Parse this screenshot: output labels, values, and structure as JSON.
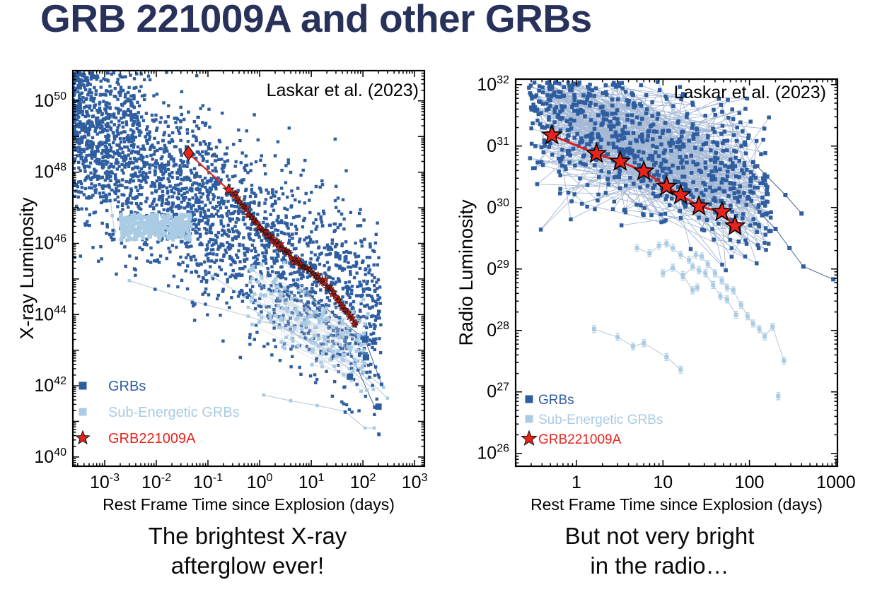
{
  "title": "GRB 221009A and other GRBs",
  "captions": {
    "xray": "The brightest X-ray\nafterglow ever!",
    "radio": "But not very bright\nin the radio…"
  },
  "colors": {
    "title_navy": "#27315a",
    "grb_blue": "#2e5da0",
    "sub_energetic_blue": "#a9cbe3",
    "grb221009a_red": "#e8231b"
  },
  "chart_data": [
    {
      "id": "xray",
      "type": "scatter",
      "title": "",
      "annotation": "Laskar et al. (2023)",
      "xlabel": "Rest Frame Time since Explosion (days)",
      "ylabel": "X-ray Luminosity",
      "xscale": "log",
      "yscale": "log",
      "xlim_log": [
        -3.616,
        3.19
      ],
      "ylim_log": [
        39.74,
        50.85
      ],
      "xticks": [
        {
          "v": -3,
          "base": "10",
          "exp": "-3"
        },
        {
          "v": -2,
          "base": "10",
          "exp": "-2"
        },
        {
          "v": -1,
          "base": "10",
          "exp": "-1"
        },
        {
          "v": 0,
          "base": "10",
          "exp": "0"
        },
        {
          "v": 1,
          "base": "10",
          "exp": "1"
        },
        {
          "v": 2,
          "base": "10",
          "exp": "2"
        },
        {
          "v": 3,
          "base": "10",
          "exp": "3"
        }
      ],
      "yticks": [
        {
          "v": 40,
          "base": "10",
          "exp": "40"
        },
        {
          "v": 42,
          "base": "10",
          "exp": "42"
        },
        {
          "v": 44,
          "base": "10",
          "exp": "44"
        },
        {
          "v": 46,
          "base": "10",
          "exp": "46"
        },
        {
          "v": 48,
          "base": "10",
          "exp": "48"
        },
        {
          "v": 50,
          "base": "10",
          "exp": "50"
        }
      ],
      "legend": [
        {
          "marker": "square",
          "color": "#2e5da0",
          "label": "GRBs"
        },
        {
          "marker": "square",
          "color": "#a9cbe3",
          "label": "Sub-Energetic GRBs"
        },
        {
          "marker": "star",
          "color": "#e8231b",
          "label": "GRB221009A"
        }
      ],
      "series": [
        {
          "name": "sub-energetic-lightcurves",
          "kind": "track",
          "color": "#a9cbe3",
          "marker": "square",
          "size": 4.6,
          "line": {
            "color": "#becbdb",
            "width": 1.1
          },
          "sets": [
            [
              [
                0.00115,
                9.5e+47
              ],
              [
                0.00122,
                4e+47
              ],
              [
                0.0013,
                1.6e+47
              ],
              [
                0.0014,
                6e+46
              ],
              [
                0.00155,
                2.2e+46
              ]
            ],
            [
              [
                0.003,
                9e+44
              ],
              [
                0.05,
                2.4e+44
              ],
              [
                0.6,
                9e+43
              ],
              [
                2.5,
                4.5e+43
              ],
              [
                8,
                2e+43
              ],
              [
                25,
                9e+42
              ],
              [
                90,
                3e+42
              ],
              [
                250,
                9e+41
              ]
            ],
            [
              [
                0.12,
                1.2e+45
              ],
              [
                0.5,
                3.2e+44
              ],
              [
                1.5,
                1.1e+44
              ],
              [
                4,
                4.5e+43
              ],
              [
                12,
                1.6e+43
              ],
              [
                40,
                5.5e+42
              ],
              [
                120,
                1.6e+42
              ],
              [
                300,
                4.5e+41
              ]
            ],
            [
              [
                0.6,
                1.6e+44
              ],
              [
                2,
                6e+43
              ],
              [
                6,
                2.4e+43
              ],
              [
                18,
                9e+42
              ],
              [
                55,
                3e+42
              ],
              [
                160,
                8e+41
              ]
            ],
            [
              [
                1.2,
                5.5e+41
              ],
              [
                4,
                3.8e+41
              ],
              [
                13,
                2.8e+41
              ],
              [
                45,
                1.9e+41
              ],
              [
                110,
                6.5e+40
              ],
              [
                165,
                6.5e+40
              ]
            ]
          ]
        },
        {
          "name": "grb-lightcurve-tails",
          "kind": "track",
          "color": "#2e5da0",
          "marker": "square",
          "size": 5,
          "line": {
            "color": "#46628f",
            "width": 1
          },
          "sets": [
            [
              [
                2.5,
                7e+44
              ],
              [
                12,
                1.1e+44
              ],
              [
                45,
                1.8e+43
              ],
              [
                170,
                2.5e+41
              ]
            ],
            [
              [
                8,
                4e+44
              ],
              [
                30,
                9e+43
              ],
              [
                110,
                2e+43
              ],
              [
                230,
                1.1e+42
              ]
            ]
          ]
        },
        {
          "name": "grbs-cloud",
          "kind": "cloud",
          "color": "#2e5da0",
          "marker": "square",
          "size": 4.4,
          "n": 2700,
          "seed": 11,
          "xlog": [
            -3.61,
            2.35
          ],
          "xbias": 1.3,
          "c0": 46.0,
          "slope": -0.95,
          "sigma": 1.25,
          "clip": [
            40.2,
            50.8
          ]
        },
        {
          "name": "sub-energetic-late-cloud",
          "kind": "cloud",
          "color": "#a9cbe3",
          "marker": "square",
          "size": 5,
          "n": 150,
          "seed": 33,
          "xlog": [
            -0.2,
            2.1
          ],
          "xbias": 0.9,
          "c0": 44.6,
          "slope": -0.85,
          "sigma": 0.55,
          "clip": [
            41.8,
            45.6
          ],
          "chains": true,
          "chain_color": "#b7c6d8"
        },
        {
          "name": "sub-energetic-blob",
          "kind": "cloud",
          "color": "#a9cbe3",
          "marker": "square",
          "size": 5,
          "n": 420,
          "seed": 22,
          "xlog": [
            -2.7,
            -1.33
          ],
          "xbias": 1.0,
          "c0": 46.45,
          "slope": 0,
          "sigma": 0.26,
          "clip": [
            46.07,
            46.82
          ]
        },
        {
          "name": "grb-outliers",
          "kind": "track",
          "color": "#2e5da0",
          "marker": "square",
          "size": 9,
          "sets": [
            [
              [
                56,
                1.8e+42
              ]
            ],
            [
              [
                115,
                6.3e+42
              ]
            ],
            [
              [
                110,
                2e+43
              ]
            ],
            [
              [
                200,
                2.6e+41
              ]
            ]
          ]
        },
        {
          "name": "grb221009a-early-line",
          "kind": "track",
          "color": "#e8231b",
          "marker": "none",
          "line": {
            "color": "#e8231b",
            "width": 2.2
          },
          "sets": [
            [
              [
                0.042,
                3.4e+48
              ],
              [
                0.3,
                2.5e+47
              ]
            ]
          ]
        },
        {
          "name": "grb221009a-first-detection",
          "kind": "track",
          "color": "#e8231b",
          "marker": "diamond",
          "size": 10,
          "stroke": "#111111",
          "strokew": 1.2,
          "sets": [
            [
              [
                0.042,
                3.4e+48
              ]
            ]
          ]
        },
        {
          "name": "grb221009a-single-star",
          "kind": "track",
          "color": "#e8231b",
          "marker": "star",
          "size": 8,
          "stroke": "#111111",
          "strokew": 0.9,
          "sets": [
            [
              [
                0.25,
                3.2e+47
              ]
            ]
          ]
        },
        {
          "name": "grb221009a-track",
          "kind": "densetrack",
          "color": "#e8231b",
          "marker": "star",
          "size": 5,
          "stroke": "#111111",
          "strokew": 0.5,
          "count": 115,
          "jitter": 0.05,
          "line": {
            "color": "#e8231b",
            "width": 2.2
          },
          "waypoints": [
            [
              0.3,
              2.5e+47
            ],
            [
              1,
              2.9e+46
            ],
            [
              4.3,
              3.8e+45
            ],
            [
              20,
              7e+44
            ],
            [
              73,
              5.6e+43
            ]
          ]
        }
      ]
    },
    {
      "id": "radio",
      "type": "scatter",
      "title": "",
      "annotation": "Laskar et al. (2023)",
      "xlabel": "Rest Frame Time since Explosion (days)",
      "ylabel": "Radio Luminosity",
      "xscale": "log",
      "yscale": "log",
      "xlim_log": [
        -0.703,
        3.017
      ],
      "ylim_log": [
        25.79,
        32.09
      ],
      "xticks": [
        {
          "v": 0,
          "base": "1",
          "exp": ""
        },
        {
          "v": 1,
          "base": "10",
          "exp": ""
        },
        {
          "v": 2,
          "base": "100",
          "exp": ""
        },
        {
          "v": 3,
          "base": "1000",
          "exp": ""
        }
      ],
      "yticks": [
        {
          "v": 26,
          "base": "10",
          "exp": "26"
        },
        {
          "v": 27,
          "base": "0",
          "exp": "27"
        },
        {
          "v": 28,
          "base": "0",
          "exp": "28"
        },
        {
          "v": 29,
          "base": "0",
          "exp": "29"
        },
        {
          "v": 30,
          "base": "0",
          "exp": "30"
        },
        {
          "v": 31,
          "base": "0",
          "exp": "31"
        },
        {
          "v": 32,
          "base": "10",
          "exp": "32"
        }
      ],
      "legend": [
        {
          "marker": "square",
          "color": "#2e5da0",
          "label": "GRBs"
        },
        {
          "marker": "square",
          "color": "#a9cbe3",
          "label": "Sub-Energetic GRBs"
        },
        {
          "marker": "star",
          "color": "#e8231b",
          "label": "GRB221009A"
        }
      ],
      "series": [
        {
          "name": "sub-energetic-lightcurves",
          "kind": "track",
          "color": "#a9cbe3",
          "marker": "square",
          "size": 6,
          "err": 5,
          "line": {
            "color": "#becbdb",
            "width": 1.1
          },
          "sets": [
            [
              [
                1.6,
                1.05e+28
              ],
              [
                3,
                7.8e+27
              ],
              [
                4.5,
                5.5e+27
              ],
              [
                6,
                6.2e+27
              ],
              [
                11,
                3.7e+27
              ],
              [
                16,
                2.3e+27
              ]
            ],
            [
              [
                5,
                2.2e+29
              ],
              [
                7,
                1.8e+29
              ],
              [
                9,
                2.4e+29
              ],
              [
                11,
                2.6e+29
              ],
              [
                13,
                2.2e+29
              ],
              [
                16,
                1.7e+29
              ],
              [
                20,
                1.4e+29
              ],
              [
                24,
                1.7e+29
              ],
              [
                28,
                1.6e+29
              ],
              [
                33,
                1.2e+29
              ],
              [
                40,
                8.5e+28
              ],
              [
                48,
                6.5e+28
              ],
              [
                55,
                5e+28
              ],
              [
                65,
                4.5e+28
              ],
              [
                80,
                2.6e+28
              ],
              [
                95,
                1.7e+28
              ],
              [
                110,
                1.3e+28
              ],
              [
                130,
                1.05e+28
              ],
              [
                150,
                8e+27
              ],
              [
                185,
                1.15e+28
              ],
              [
                250,
                3.2e+27
              ]
            ],
            [
              [
                10,
                8.5e+28
              ],
              [
                13,
                1.05e+29
              ],
              [
                17,
                7.5e+28
              ],
              [
                22,
                1.1e+29
              ],
              [
                26,
                9.5e+28
              ],
              [
                31,
                8.5e+28
              ],
              [
                38,
                5.5e+28
              ],
              [
                46,
                3.6e+28
              ],
              [
                55,
                3.2e+28
              ],
              [
                70,
                1.8e+28
              ]
            ],
            [
              [
                17,
                8e+28
              ],
              [
                22,
                4.5e+28
              ],
              [
                25,
                5e+28
              ]
            ],
            [
              [
                215,
                8.5e+26
              ]
            ]
          ]
        },
        {
          "name": "grbs-cloud",
          "kind": "cloud",
          "color": "#2e5da0",
          "marker": "square",
          "size": 5.5,
          "n": 780,
          "seed": 44,
          "xlog": [
            -0.55,
            2.25
          ],
          "xbias": 0.95,
          "c0": 31.35,
          "slope": -0.5,
          "sigma": 0.6,
          "clip": [
            28.65,
            32.05
          ],
          "chains": true,
          "chain_color": "#5b7db0"
        },
        {
          "name": "grb-late-tracks",
          "kind": "track",
          "color": "#2e5da0",
          "marker": "square",
          "size": 6,
          "line": {
            "color": "#46628f",
            "width": 1
          },
          "sets": [
            [
              [
                60,
                2.5e+30
              ],
              [
                95,
                1.4e+30
              ],
              [
                140,
                7.5e+29
              ],
              [
                200,
                4.5e+29
              ],
              [
                290,
                2.2e+29
              ],
              [
                420,
                1.1e+29
              ],
              [
                930,
                6.8e+28
              ]
            ],
            [
              [
                110,
                5.5e+30
              ],
              [
                160,
                3.2e+30
              ],
              [
                260,
                1.6e+30
              ],
              [
                400,
                8e+29
              ]
            ]
          ]
        },
        {
          "name": "grb221009a-track",
          "kind": "track",
          "color": "#e8231b",
          "marker": "star",
          "size": 14,
          "stroke": "#000000",
          "strokew": 1.6,
          "line": {
            "color": "#d92020",
            "width": 3
          },
          "sets": [
            [
              [
                0.52,
                1.5e+31
              ],
              [
                1.7,
                7.5e+30
              ],
              [
                3.2,
                5.6e+30
              ],
              [
                6,
                3.9e+30
              ],
              [
                11,
                2.2e+30
              ],
              [
                16,
                1.6e+30
              ],
              [
                26,
                1.05e+30
              ],
              [
                48,
                8.5e+29
              ],
              [
                68,
                5e+29
              ]
            ]
          ]
        }
      ]
    }
  ]
}
